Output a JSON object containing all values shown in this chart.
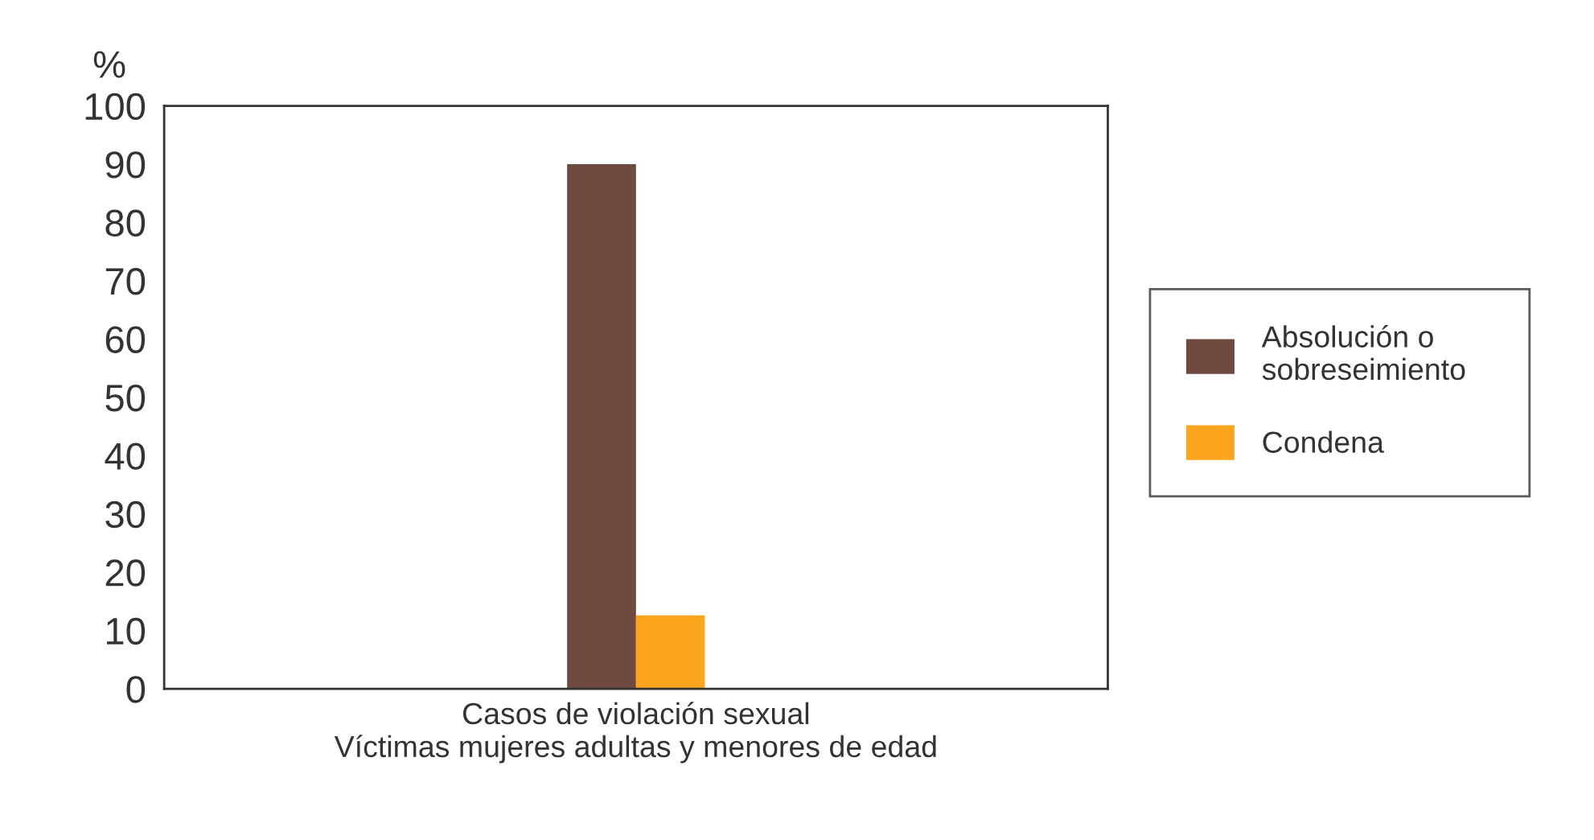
{
  "chart_data": {
    "type": "bar",
    "categories": [
      "Casos de violación sexual\nVíctimas mujeres adultas y menores de edad"
    ],
    "series": [
      {
        "name": "Absolución o\nsobreseimiento",
        "color": "#6e4a40",
        "values": [
          90
        ]
      },
      {
        "name": "Condena",
        "color": "#fba61e",
        "values": [
          12.6
        ]
      }
    ],
    "ylabel": "%",
    "ylim": [
      0,
      100
    ],
    "yticks": [
      0,
      10,
      20,
      30,
      40,
      50,
      60,
      70,
      80,
      90,
      100
    ],
    "legend": "right"
  }
}
